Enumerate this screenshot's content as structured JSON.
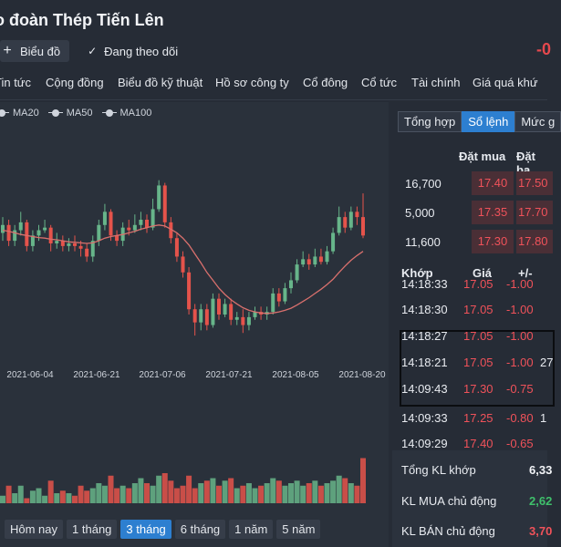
{
  "header": {
    "title": "o đoàn Thép Tiến Lên",
    "right_value": "-0",
    "chart_button": "Biểu đồ",
    "follow_button": "Đang theo dõi"
  },
  "nav": [
    "Tin tức",
    "Cộng đồng",
    "Biểu đồ kỹ thuật",
    "Hồ sơ công ty",
    "Cổ đông",
    "Cổ tức",
    "Tài chính",
    "Giá quá khứ"
  ],
  "chart": {
    "legend": [
      "MA20",
      "MA50",
      "MA100"
    ],
    "x_labels": [
      "2021-06-04",
      "2021-06-21",
      "2021-07-06",
      "2021-07-21",
      "2021-08-05",
      "2021-08-20"
    ]
  },
  "chart_data": {
    "type": "candlestick",
    "x_tick_labels": [
      "2021-06-04",
      "2021-06-21",
      "2021-07-06",
      "2021-07-21",
      "2021-08-05",
      "2021-08-20"
    ],
    "legend": [
      "MA20",
      "MA50",
      "MA100"
    ],
    "colors": {
      "up": "#67b58a",
      "down": "#e5534b",
      "ma": "#d9706d"
    },
    "y_range_price": [
      15.0,
      19.5
    ],
    "candles": [
      {
        "o": 17.45,
        "c": 17.6,
        "h": 17.75,
        "l": 17.3
      },
      {
        "o": 17.6,
        "c": 17.3,
        "h": 17.7,
        "l": 17.2
      },
      {
        "o": 17.3,
        "c": 17.5,
        "h": 17.6,
        "l": 17.2
      },
      {
        "o": 17.5,
        "c": 17.65,
        "h": 17.85,
        "l": 17.4
      },
      {
        "o": 17.65,
        "c": 17.2,
        "h": 17.7,
        "l": 17.1
      },
      {
        "o": 17.2,
        "c": 17.4,
        "h": 17.5,
        "l": 17.1
      },
      {
        "o": 17.4,
        "c": 17.5,
        "h": 17.6,
        "l": 17.3
      },
      {
        "o": 17.5,
        "c": 17.55,
        "h": 17.7,
        "l": 17.45
      },
      {
        "o": 17.55,
        "c": 17.25,
        "h": 17.6,
        "l": 17.1
      },
      {
        "o": 17.25,
        "c": 17.3,
        "h": 17.45,
        "l": 17.15
      },
      {
        "o": 17.3,
        "c": 17.2,
        "h": 17.4,
        "l": 17.1
      },
      {
        "o": 17.2,
        "c": 17.25,
        "h": 17.35,
        "l": 17.1
      },
      {
        "o": 17.25,
        "c": 17.2,
        "h": 17.4,
        "l": 17.1
      },
      {
        "o": 17.2,
        "c": 17.15,
        "h": 17.3,
        "l": 17.0
      },
      {
        "o": 17.15,
        "c": 17.0,
        "h": 17.25,
        "l": 16.9
      },
      {
        "o": 17.0,
        "c": 17.3,
        "h": 17.4,
        "l": 16.9
      },
      {
        "o": 17.3,
        "c": 17.6,
        "h": 17.7,
        "l": 17.2
      },
      {
        "o": 17.6,
        "c": 17.85,
        "h": 18.0,
        "l": 17.5
      },
      {
        "o": 17.85,
        "c": 17.4,
        "h": 17.9,
        "l": 17.3
      },
      {
        "o": 17.4,
        "c": 17.3,
        "h": 17.5,
        "l": 17.2
      },
      {
        "o": 17.3,
        "c": 17.55,
        "h": 17.65,
        "l": 17.2
      },
      {
        "o": 17.55,
        "c": 17.5,
        "h": 17.7,
        "l": 17.4
      },
      {
        "o": 17.5,
        "c": 17.6,
        "h": 17.8,
        "l": 17.45
      },
      {
        "o": 17.6,
        "c": 17.7,
        "h": 17.85,
        "l": 17.5
      },
      {
        "o": 17.7,
        "c": 17.55,
        "h": 17.8,
        "l": 17.45
      },
      {
        "o": 17.55,
        "c": 17.9,
        "h": 18.1,
        "l": 17.5
      },
      {
        "o": 17.9,
        "c": 18.35,
        "h": 18.45,
        "l": 17.85
      },
      {
        "o": 18.35,
        "c": 17.65,
        "h": 18.4,
        "l": 17.55
      },
      {
        "o": 17.65,
        "c": 17.35,
        "h": 17.75,
        "l": 17.25
      },
      {
        "o": 17.35,
        "c": 17.0,
        "h": 17.45,
        "l": 16.9
      },
      {
        "o": 17.0,
        "c": 16.7,
        "h": 17.1,
        "l": 16.6
      },
      {
        "o": 16.7,
        "c": 16.0,
        "h": 16.8,
        "l": 15.9
      },
      {
        "o": 16.0,
        "c": 15.75,
        "h": 16.1,
        "l": 15.5
      },
      {
        "o": 15.75,
        "c": 16.0,
        "h": 16.1,
        "l": 15.6
      },
      {
        "o": 16.0,
        "c": 15.7,
        "h": 16.1,
        "l": 15.6
      },
      {
        "o": 15.7,
        "c": 16.2,
        "h": 16.3,
        "l": 15.65
      },
      {
        "o": 16.2,
        "c": 15.9,
        "h": 16.3,
        "l": 15.8
      },
      {
        "o": 15.9,
        "c": 16.1,
        "h": 16.2,
        "l": 15.85
      },
      {
        "o": 16.1,
        "c": 15.8,
        "h": 16.2,
        "l": 15.7
      },
      {
        "o": 15.8,
        "c": 15.85,
        "h": 15.95,
        "l": 15.7
      },
      {
        "o": 15.85,
        "c": 15.7,
        "h": 16.0,
        "l": 15.55
      },
      {
        "o": 15.7,
        "c": 15.85,
        "h": 15.95,
        "l": 15.6
      },
      {
        "o": 15.85,
        "c": 15.95,
        "h": 16.05,
        "l": 15.8
      },
      {
        "o": 15.95,
        "c": 15.9,
        "h": 16.05,
        "l": 15.8
      },
      {
        "o": 15.9,
        "c": 15.95,
        "h": 16.05,
        "l": 15.8
      },
      {
        "o": 15.95,
        "c": 16.3,
        "h": 16.4,
        "l": 15.9
      },
      {
        "o": 16.3,
        "c": 16.15,
        "h": 16.4,
        "l": 16.05
      },
      {
        "o": 16.15,
        "c": 16.4,
        "h": 16.5,
        "l": 16.1
      },
      {
        "o": 16.4,
        "c": 16.55,
        "h": 16.7,
        "l": 16.3
      },
      {
        "o": 16.55,
        "c": 16.85,
        "h": 16.95,
        "l": 16.5
      },
      {
        "o": 16.85,
        "c": 16.95,
        "h": 17.1,
        "l": 16.8
      },
      {
        "o": 16.95,
        "c": 16.85,
        "h": 17.05,
        "l": 16.75
      },
      {
        "o": 16.85,
        "c": 17.0,
        "h": 17.15,
        "l": 16.8
      },
      {
        "o": 17.0,
        "c": 16.9,
        "h": 17.15,
        "l": 16.85
      },
      {
        "o": 16.9,
        "c": 17.1,
        "h": 17.2,
        "l": 16.85
      },
      {
        "o": 17.1,
        "c": 17.45,
        "h": 17.55,
        "l": 17.05
      },
      {
        "o": 17.45,
        "c": 17.75,
        "h": 17.95,
        "l": 17.4
      },
      {
        "o": 17.75,
        "c": 17.55,
        "h": 17.85,
        "l": 17.45
      },
      {
        "o": 17.55,
        "c": 17.85,
        "h": 17.95,
        "l": 17.5
      },
      {
        "o": 17.85,
        "c": 17.75,
        "h": 17.95,
        "l": 17.6
      },
      {
        "o": 17.75,
        "c": 17.4,
        "h": 18.2,
        "l": 17.35
      }
    ],
    "volumes_relative": [
      0.15,
      0.35,
      0.2,
      0.35,
      0.1,
      0.25,
      0.3,
      0.15,
      0.45,
      0.2,
      0.25,
      0.2,
      0.15,
      0.35,
      0.25,
      0.3,
      0.4,
      0.35,
      0.55,
      0.3,
      0.35,
      0.3,
      0.4,
      0.5,
      0.4,
      0.35,
      0.55,
      0.6,
      0.45,
      0.3,
      0.35,
      0.55,
      0.3,
      0.4,
      0.45,
      0.5,
      0.35,
      0.45,
      0.5,
      0.3,
      0.35,
      0.4,
      0.3,
      0.35,
      0.4,
      0.5,
      0.45,
      0.35,
      0.4,
      0.45,
      0.35,
      0.4,
      0.45,
      0.35,
      0.4,
      0.45,
      0.55,
      0.5,
      0.4,
      0.35,
      0.9
    ],
    "ma20": [
      17.5,
      17.48,
      17.45,
      17.42,
      17.4,
      17.38,
      17.36,
      17.35,
      17.33,
      17.32,
      17.3,
      17.28,
      17.27,
      17.26,
      17.25,
      17.26,
      17.3,
      17.35,
      17.38,
      17.4,
      17.42,
      17.45,
      17.48,
      17.52,
      17.55,
      17.58,
      17.6,
      17.58,
      17.52,
      17.45,
      17.35,
      17.22,
      17.05,
      16.88,
      16.7,
      16.55,
      16.4,
      16.28,
      16.18,
      16.1,
      16.03,
      15.98,
      15.95,
      15.93,
      15.92,
      15.93,
      15.95,
      15.98,
      16.02,
      16.08,
      16.15,
      16.22,
      16.3,
      16.38,
      16.47,
      16.57,
      16.7,
      16.82,
      16.93,
      17.02,
      17.1
    ]
  },
  "ranges": [
    "Hôm nay",
    "1 tháng",
    "3 tháng",
    "6 tháng",
    "1 năm",
    "5 năm"
  ],
  "ranges_active": 2,
  "right_tabs": [
    "Tổng hợp",
    "Sổ lệnh",
    "Mức g"
  ],
  "right_tabs_active": 1,
  "orderbook": {
    "headers": {
      "bid": "Đặt mua",
      "ask": "Đặt ba"
    },
    "rows": [
      {
        "vol": "16,700",
        "bid": "17.40",
        "ask": "17.50"
      },
      {
        "vol": "5,000",
        "bid": "17.35",
        "ask": "17.70"
      },
      {
        "vol": "11,600",
        "bid": "17.30",
        "ask": "17.80"
      }
    ]
  },
  "trades": {
    "headers": {
      "time": "Khớp",
      "price": "Giá",
      "change": "+/-"
    },
    "rows": [
      {
        "t": "14:18:33",
        "p": "17.05",
        "c": "-1.00",
        "q": ""
      },
      {
        "t": "14:18:30",
        "p": "17.05",
        "c": "-1.00",
        "q": ""
      },
      {
        "t": "14:18:27",
        "p": "17.05",
        "c": "-1.00",
        "q": ""
      },
      {
        "t": "14:18:21",
        "p": "17.05",
        "c": "-1.00",
        "q": "27"
      },
      {
        "t": "14:09:43",
        "p": "17.30",
        "c": "-0.75",
        "q": ""
      },
      {
        "t": "14:09:33",
        "p": "17.25",
        "c": "-0.80",
        "q": "1"
      },
      {
        "t": "14:09:29",
        "p": "17.40",
        "c": "-0.65",
        "q": ""
      }
    ]
  },
  "summary": [
    {
      "label": "Tổng KL khớp",
      "value": "6,33",
      "color": "#f2f4f7"
    },
    {
      "label": "KL MUA chủ động",
      "value": "2,62",
      "color": "#3fc06b"
    },
    {
      "label": "KL BÁN chủ động",
      "value": "3,70",
      "color": "#f0525a"
    }
  ]
}
